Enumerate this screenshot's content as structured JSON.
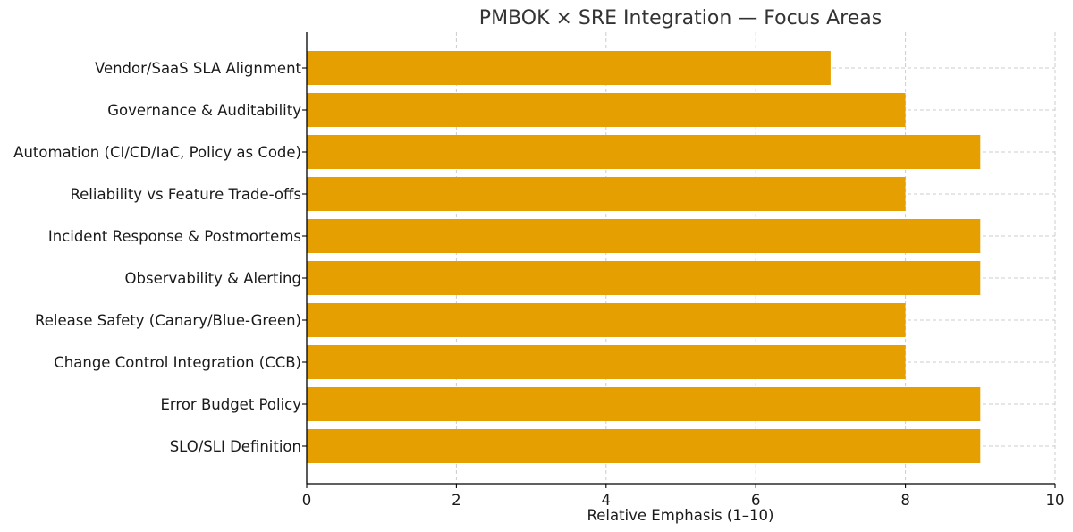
{
  "chart_data": {
    "type": "bar",
    "orientation": "horizontal",
    "title": "PMBOK × SRE Integration — Focus Areas",
    "xlabel": "Relative Emphasis (1–10)",
    "ylabel": "",
    "xlim": [
      0,
      10
    ],
    "xticks": [
      0,
      2,
      4,
      6,
      8,
      10
    ],
    "grid": true,
    "bar_color": "#E69F00",
    "categories": [
      "SLO/SLI Definition",
      "Error Budget Policy",
      "Change Control Integration (CCB)",
      "Release Safety (Canary/Blue-Green)",
      "Observability & Alerting",
      "Incident Response & Postmortems",
      "Reliability vs Feature Trade-offs",
      "Automation (CI/CD/IaC, Policy as Code)",
      "Governance & Auditability",
      "Vendor/SaaS SLA Alignment"
    ],
    "values": [
      9,
      9,
      8,
      8,
      9,
      9,
      8,
      9,
      8,
      7
    ]
  }
}
